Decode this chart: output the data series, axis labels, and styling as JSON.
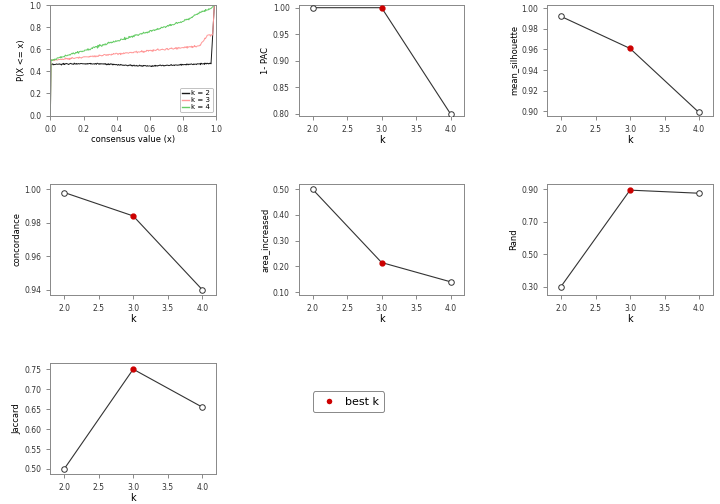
{
  "ecdf": {
    "colors": {
      "k2": "#1a1a1a",
      "k3": "#ff9999",
      "k4": "#66cc66"
    },
    "xlabel": "consensus value (x)",
    "ylabel": "P(X <= x)"
  },
  "pac": {
    "k": [
      2,
      3,
      4
    ],
    "values": [
      1.0,
      1.0,
      0.8
    ],
    "best_k": 3,
    "ylabel": "1- PAC",
    "yticks": [
      0.8,
      0.85,
      0.9,
      0.95,
      1.0
    ],
    "ylim": [
      0.797,
      1.005
    ]
  },
  "silhouette": {
    "k": [
      2,
      3,
      4
    ],
    "values": [
      0.992,
      0.961,
      0.899
    ],
    "best_k": 3,
    "ylabel": "mean_silhouette",
    "yticks": [
      0.9,
      0.92,
      0.94,
      0.96,
      0.98,
      1.0
    ],
    "ylim": [
      0.896,
      1.003
    ]
  },
  "concordance": {
    "k": [
      2,
      3,
      4
    ],
    "values": [
      0.998,
      0.984,
      0.94
    ],
    "best_k": 3,
    "ylabel": "concordance",
    "yticks": [
      0.94,
      0.96,
      0.98,
      1.0
    ],
    "ylim": [
      0.937,
      1.003
    ]
  },
  "area_increased": {
    "k": [
      2,
      3,
      4
    ],
    "values": [
      0.5,
      0.215,
      0.14
    ],
    "best_k": 3,
    "ylabel": "area_increased",
    "yticks": [
      0.1,
      0.2,
      0.3,
      0.4,
      0.5
    ],
    "ylim": [
      0.09,
      0.52
    ]
  },
  "rand": {
    "k": [
      2,
      3,
      4
    ],
    "values": [
      0.3,
      0.893,
      0.874
    ],
    "best_k": 3,
    "ylabel": "Rand",
    "yticks": [
      0.3,
      0.5,
      0.7,
      0.9
    ],
    "ylim": [
      0.25,
      0.93
    ]
  },
  "jaccard": {
    "k": [
      2,
      3,
      4
    ],
    "values": [
      0.5,
      0.75,
      0.655
    ],
    "best_k": 3,
    "ylabel": "Jaccard",
    "yticks": [
      0.5,
      0.55,
      0.6,
      0.65,
      0.7,
      0.75
    ],
    "ylim": [
      0.488,
      0.765
    ]
  },
  "xlabel_k": "k",
  "best_k_color": "#cc0000",
  "open_circle_color": "#ffffff",
  "line_color": "#333333",
  "bg_color": "#ffffff",
  "gray_line_color": "#aaaaaa"
}
